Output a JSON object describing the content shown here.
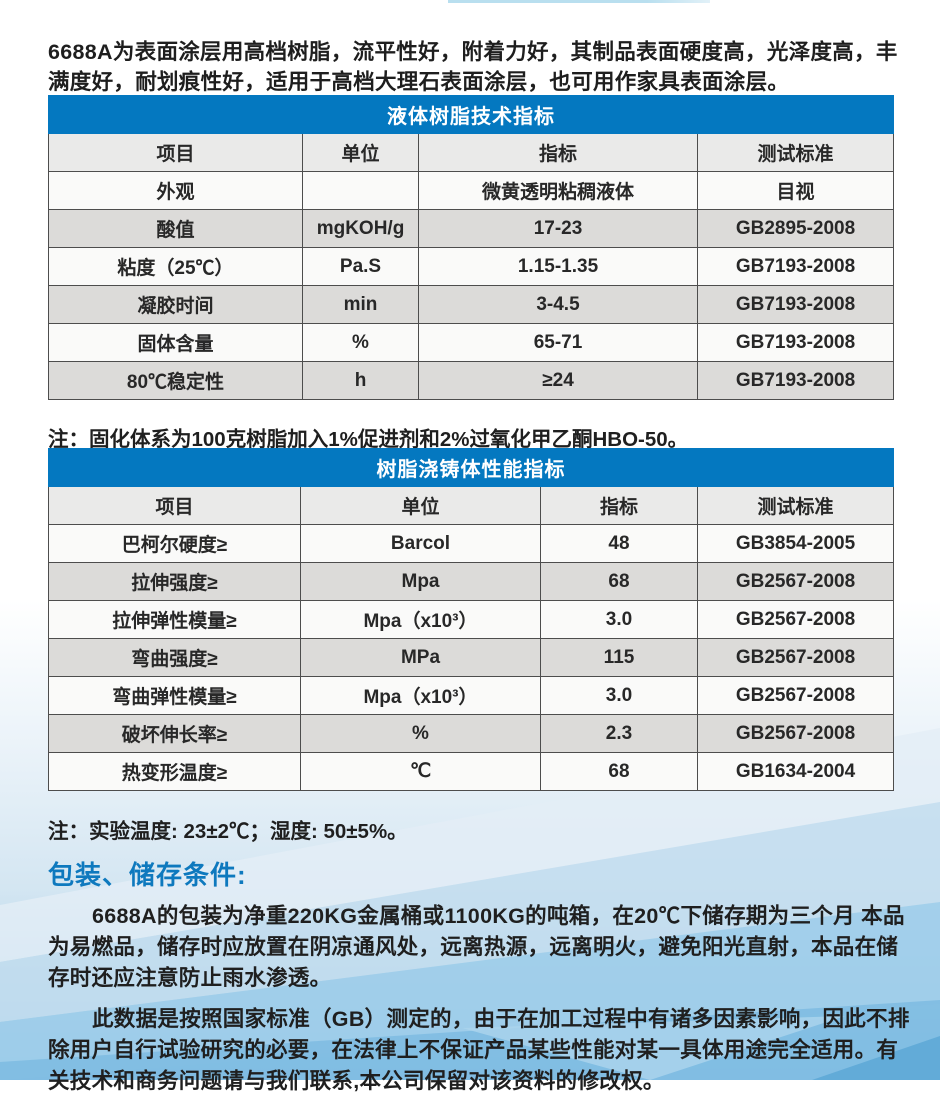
{
  "intro": {
    "text": "6688A为表面涂层用高档树脂，流平性好，附着力好，其制品表面硬度高，光泽度高，丰满度好，耐划痕性好，适用于高档大理石表面涂层，也可用作家具表面涂层。"
  },
  "table1": {
    "title": "液体树脂技术指标",
    "headers": [
      "项目",
      "单位",
      "指标",
      "测试标准"
    ],
    "rows": [
      [
        "外观",
        "",
        "微黄透明粘稠液体",
        "目视"
      ],
      [
        "酸值",
        "mgKOH/g",
        "17-23",
        "GB2895-2008"
      ],
      [
        "粘度（25℃）",
        "Pa.S",
        "1.15-1.35",
        "GB7193-2008"
      ],
      [
        "凝胶时间",
        "min",
        "3-4.5",
        "GB7193-2008"
      ],
      [
        "固体含量",
        "%",
        "65-71",
        "GB7193-2008"
      ],
      [
        "80℃稳定性",
        "h",
        "≥24",
        "GB7193-2008"
      ]
    ],
    "note": "注：固化体系为100克树脂加入1%促进剂和2%过氧化甲乙酮HBO-50。"
  },
  "table2": {
    "title": "树脂浇铸体性能指标",
    "headers": [
      "项目",
      "单位",
      "指标",
      "测试标准"
    ],
    "rows": [
      [
        "巴柯尔硬度≥",
        "Barcol",
        "48",
        "GB3854-2005"
      ],
      [
        "拉伸强度≥",
        "Mpa",
        "68",
        "GB2567-2008"
      ],
      [
        "拉伸弹性模量≥",
        "Mpa（x10³）",
        "3.0",
        "GB2567-2008"
      ],
      [
        "弯曲强度≥",
        "MPa",
        "115",
        "GB2567-2008"
      ],
      [
        "弯曲弹性模量≥",
        "Mpa（x10³）",
        "3.0",
        "GB2567-2008"
      ],
      [
        "破坏伸长率≥",
        "%",
        "2.3",
        "GB2567-2008"
      ],
      [
        "热变形温度≥",
        "℃",
        "68",
        "GB1634-2004"
      ]
    ],
    "note": "注：实验温度: 23±2℃；湿度: 50±5%。"
  },
  "storage": {
    "heading": "包装、储存条件:",
    "para1": "6688A的包装为净重220KG金属桶或1100KG的吨箱，在20℃下储存期为三个月 本品为易燃品，储存时应放置在阴凉通风处，远离热源，远离明火，避免阳光直射，本品在储存时还应注意防止雨水渗透。",
    "para2": "此数据是按照国家标准（GB）测定的，由于在加工过程中有诸多因素影响，因此不排除用户自行试验研究的必要，在法律上不保证产品某些性能对某一具体用途完全适用。有关技术和商务问题请与我们联系,本公司保留对该资料的修改权。"
  },
  "colors": {
    "table_title_blue": "#0478c0",
    "heading_blue": "#0e79be",
    "row_gray": "#dcdbd9",
    "bottom_sky_blue": "#8ac2e4"
  }
}
